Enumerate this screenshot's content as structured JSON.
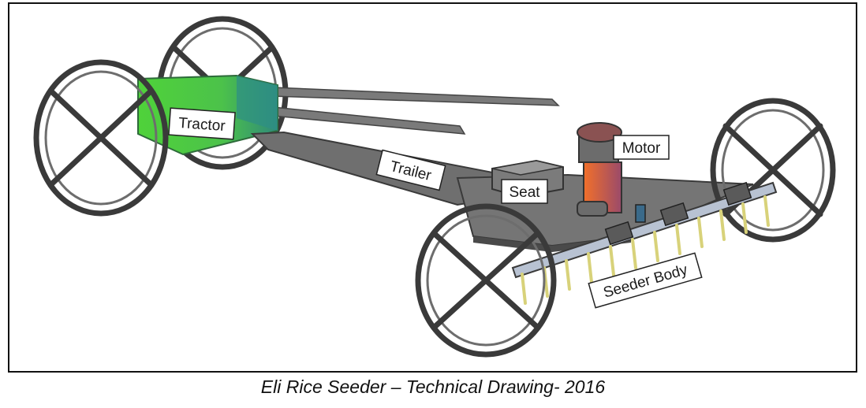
{
  "diagram": {
    "labels": {
      "tractor": "Tractor",
      "trailer": "Trailer",
      "seat": "Seat",
      "motor": "Motor",
      "seeder_body": "Seeder Body"
    },
    "colors": {
      "tractor_body": "#5fd64a",
      "chassis": "#6f6f6f",
      "wheel": "#3a3a3a",
      "motor_accent": "#f07030",
      "seeder_tines": "#d8d27a"
    }
  },
  "caption": "Eli Rice Seeder – Technical Drawing- 2016"
}
